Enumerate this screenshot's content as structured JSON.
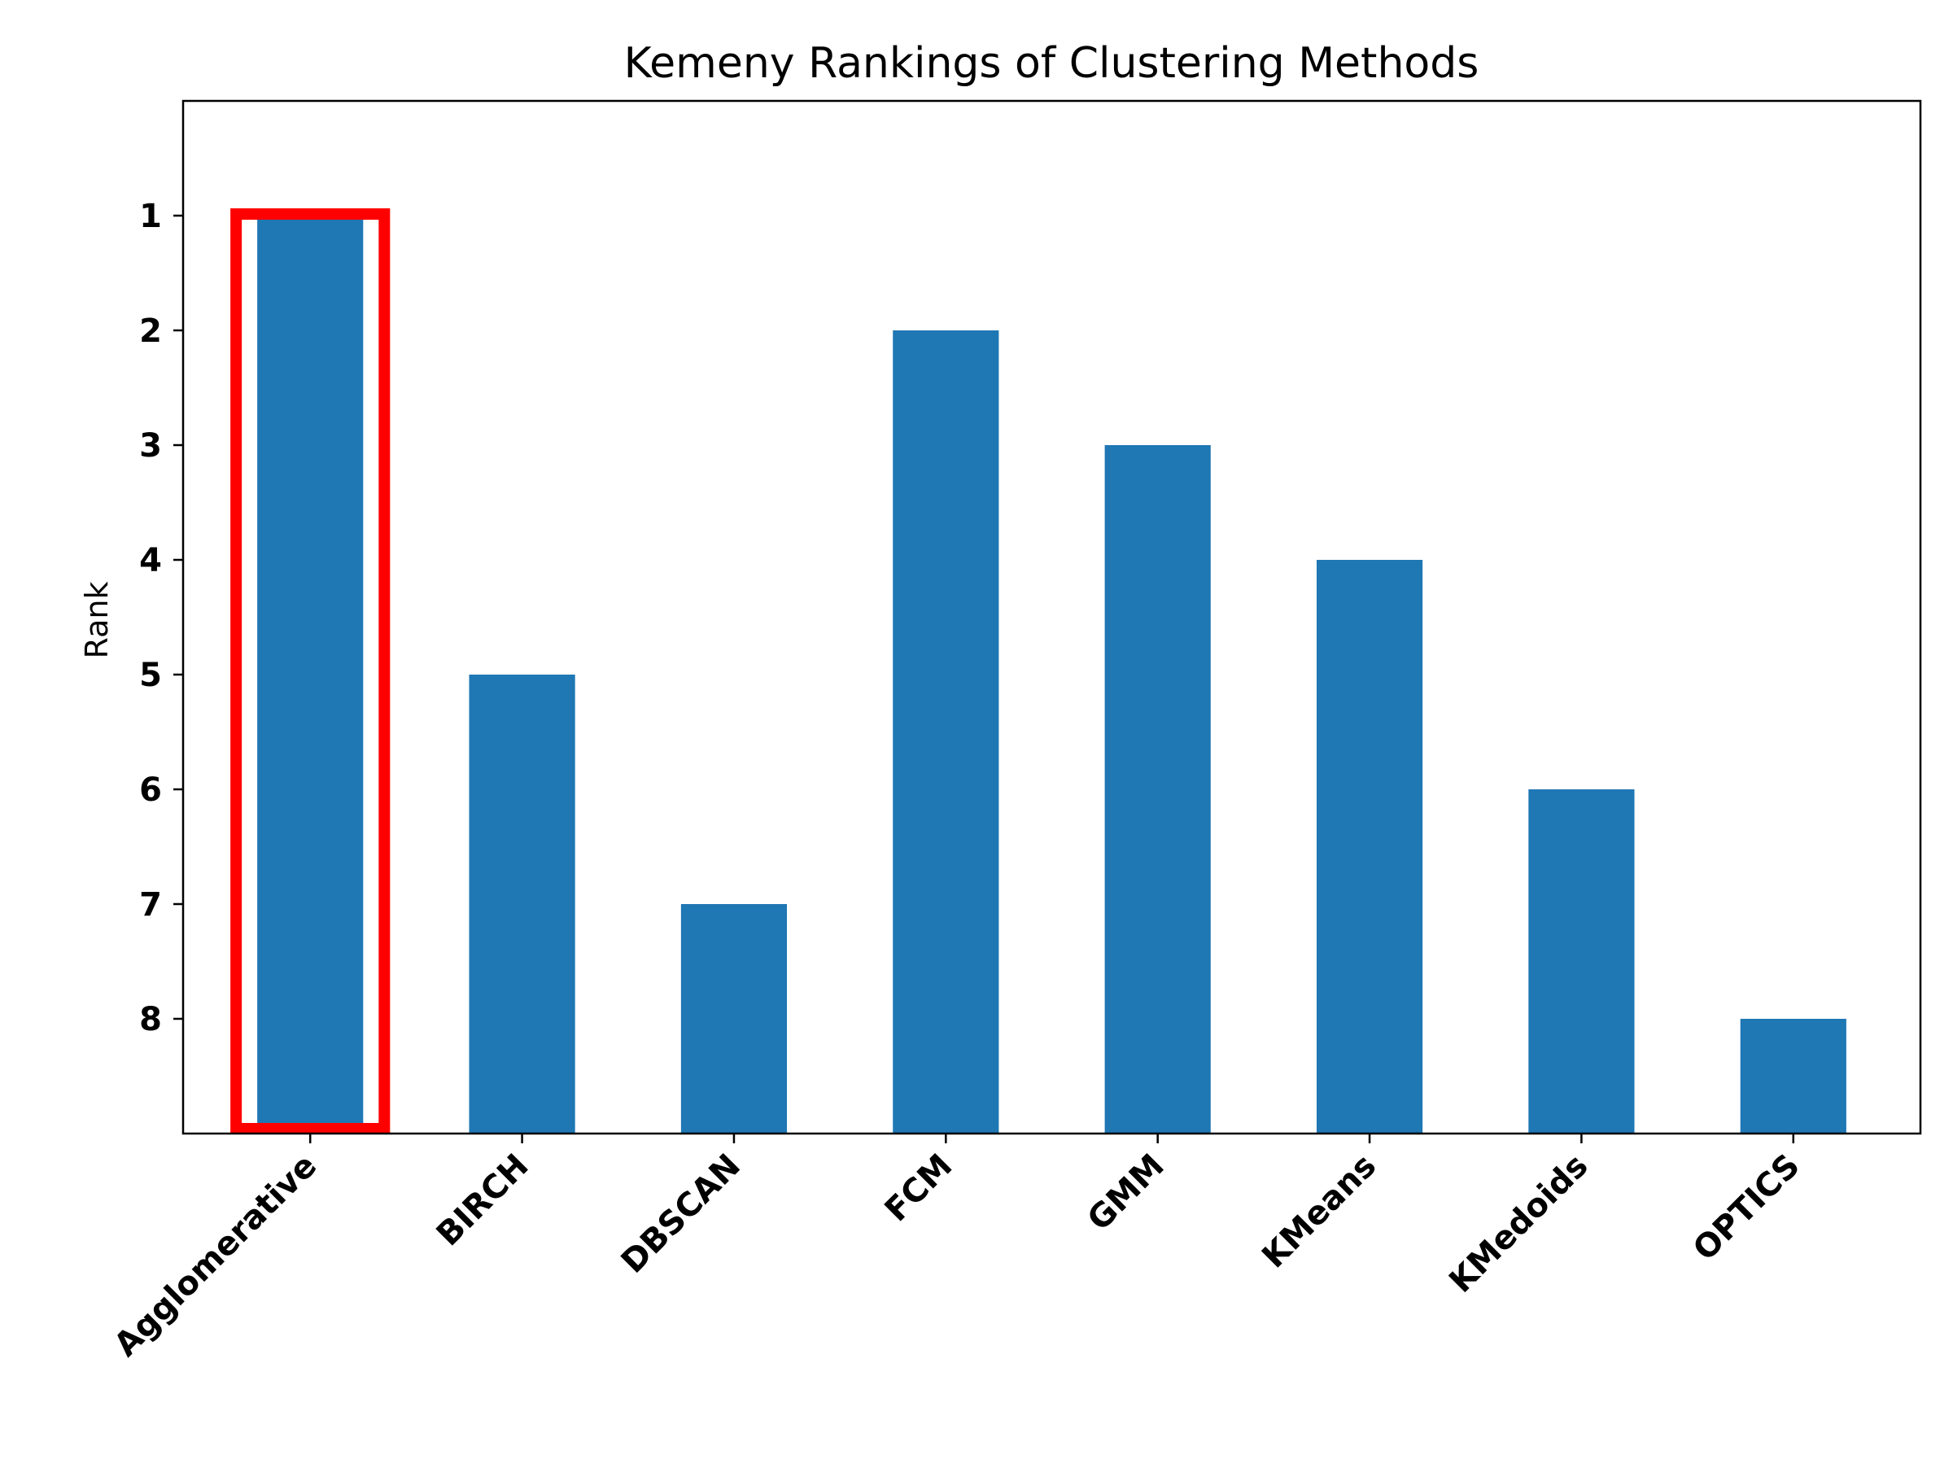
{
  "chart_data": {
    "type": "bar",
    "title": "Kemeny Rankings of Clustering Methods",
    "xlabel": "",
    "ylabel": "Rank",
    "categories": [
      "Agglomerative",
      "BIRCH",
      "DBSCAN",
      "FCM",
      "GMM",
      "KMeans",
      "KMedoids",
      "OPTICS"
    ],
    "values": [
      1,
      5,
      7,
      2,
      3,
      4,
      6,
      8
    ],
    "y_axis_inverted": true,
    "ylim": [
      9,
      0
    ],
    "yticks": [
      "1",
      "2",
      "3",
      "4",
      "5",
      "6",
      "7",
      "8"
    ],
    "bar_color": "#1f77b4",
    "highlight": {
      "category": "Agglomerative",
      "color": "#ff0000"
    },
    "grid": false,
    "legend": "none"
  }
}
